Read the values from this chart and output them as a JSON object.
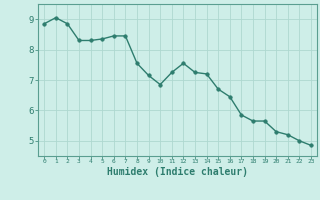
{
  "x": [
    0,
    1,
    2,
    3,
    4,
    5,
    6,
    7,
    8,
    9,
    10,
    11,
    12,
    13,
    14,
    15,
    16,
    17,
    18,
    19,
    20,
    21,
    22,
    23
  ],
  "y": [
    8.85,
    9.05,
    8.85,
    8.3,
    8.3,
    8.35,
    8.45,
    8.45,
    7.55,
    7.15,
    6.85,
    7.25,
    7.55,
    7.25,
    7.2,
    6.7,
    6.45,
    5.85,
    5.65,
    5.65,
    5.3,
    5.2,
    5.0,
    4.85
  ],
  "line_color": "#2e7d6e",
  "marker": "o",
  "markersize": 2.5,
  "linewidth": 1.0,
  "xlabel": "Humidex (Indice chaleur)",
  "xlabel_fontsize": 7,
  "xlim": [
    -0.5,
    23.5
  ],
  "ylim": [
    4.5,
    9.5
  ],
  "yticks": [
    5,
    6,
    7,
    8,
    9
  ],
  "xticks": [
    0,
    1,
    2,
    3,
    4,
    5,
    6,
    7,
    8,
    9,
    10,
    11,
    12,
    13,
    14,
    15,
    16,
    17,
    18,
    19,
    20,
    21,
    22,
    23
  ],
  "bg_color": "#ceeee8",
  "grid_color": "#aed8d0",
  "tick_color": "#2e7d6e",
  "label_color": "#2e7d6e",
  "spine_color": "#5a9e90"
}
